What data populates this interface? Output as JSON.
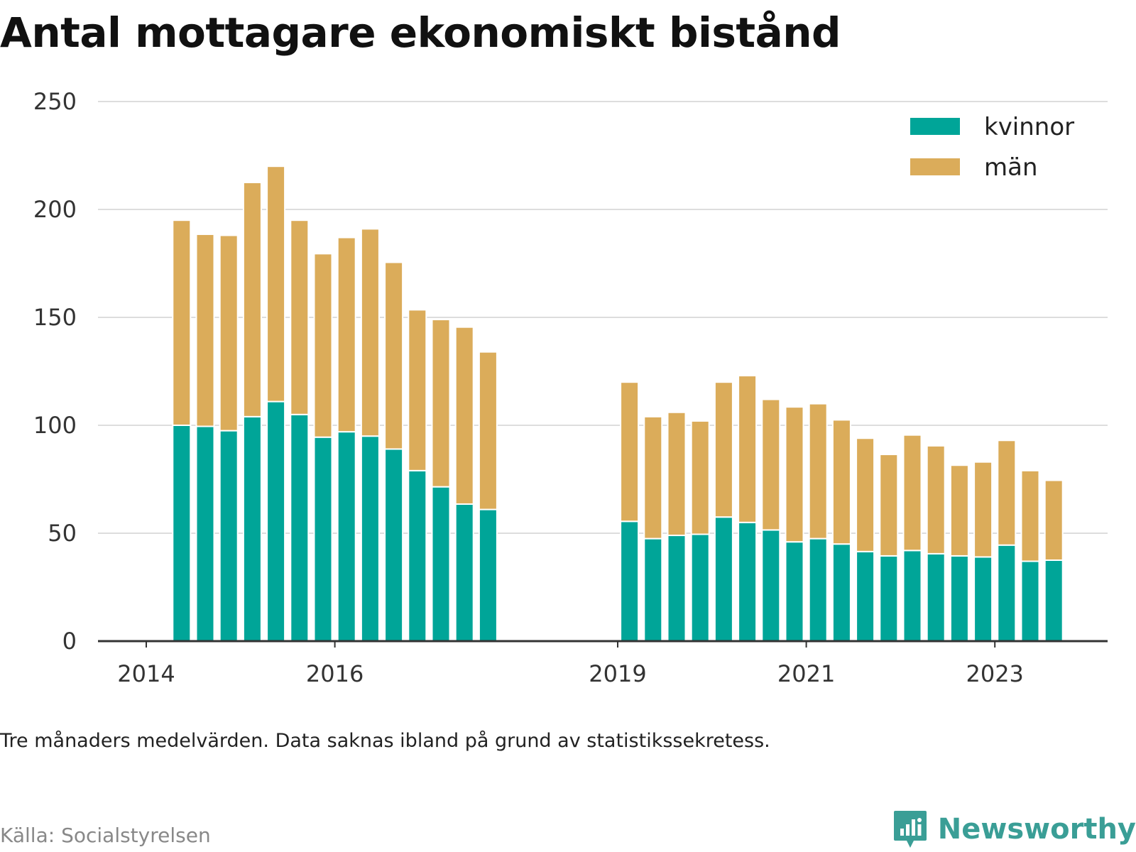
{
  "title": "Antal mottagare ekonomiskt bistånd",
  "note": "Tre månaders medelvärden. Data saknas ibland på grund av statistikssekretess.",
  "source": "Källa: Socialstyrelsen",
  "brand": {
    "name": "Newsworthy",
    "icon": "newsworthy-logo-icon",
    "color": "#3a9e96"
  },
  "chart_data": {
    "type": "bar",
    "stacked": true,
    "ylim": [
      0,
      250
    ],
    "yticks": [
      0,
      50,
      100,
      150,
      200,
      250
    ],
    "xticks": [
      "2014",
      "2016",
      "2019",
      "2021",
      "2023"
    ],
    "grid": true,
    "legend_position": "top-right",
    "colors": {
      "kvinnor": "#00a598",
      "män": "#dbac5a",
      "grid": "#dddddd",
      "axis": "#333333"
    },
    "categories": [
      "2014-Q2",
      "2014-Q3",
      "2014-Q4",
      "2015-Q1",
      "2015-Q2",
      "2015-Q3",
      "2015-Q4",
      "2016-Q1",
      "2016-Q2",
      "2016-Q3",
      "2016-Q4",
      "2017-Q1",
      "2017-Q2",
      "2017-Q3",
      "2019-Q1",
      "2019-Q2",
      "2019-Q3",
      "2019-Q4",
      "2020-Q1",
      "2020-Q2",
      "2020-Q3",
      "2020-Q4",
      "2021-Q1",
      "2021-Q2",
      "2021-Q3",
      "2021-Q4",
      "2022-Q1",
      "2022-Q2",
      "2022-Q3",
      "2022-Q4",
      "2023-Q1",
      "2023-Q2",
      "2023-Q3"
    ],
    "series": [
      {
        "name": "kvinnor",
        "values": [
          100,
          99.5,
          97.5,
          104,
          111,
          105,
          94.5,
          97,
          95,
          89,
          79,
          71.5,
          63.5,
          61,
          55.5,
          47.5,
          49,
          49.5,
          57.5,
          55,
          51.5,
          46,
          47.5,
          45,
          41.5,
          39.5,
          42,
          40.5,
          39.5,
          39,
          44.5,
          37,
          37.5
        ]
      },
      {
        "name": "män",
        "values": [
          95,
          89,
          90.5,
          108.5,
          109,
          90,
          85,
          90,
          96,
          86.5,
          74.5,
          77.5,
          82,
          73,
          64.5,
          56.5,
          57,
          52.5,
          62.5,
          68,
          60.5,
          62.5,
          62.5,
          57.5,
          52.5,
          47,
          53.5,
          50,
          42,
          44,
          48.5,
          42,
          37
        ]
      }
    ]
  }
}
